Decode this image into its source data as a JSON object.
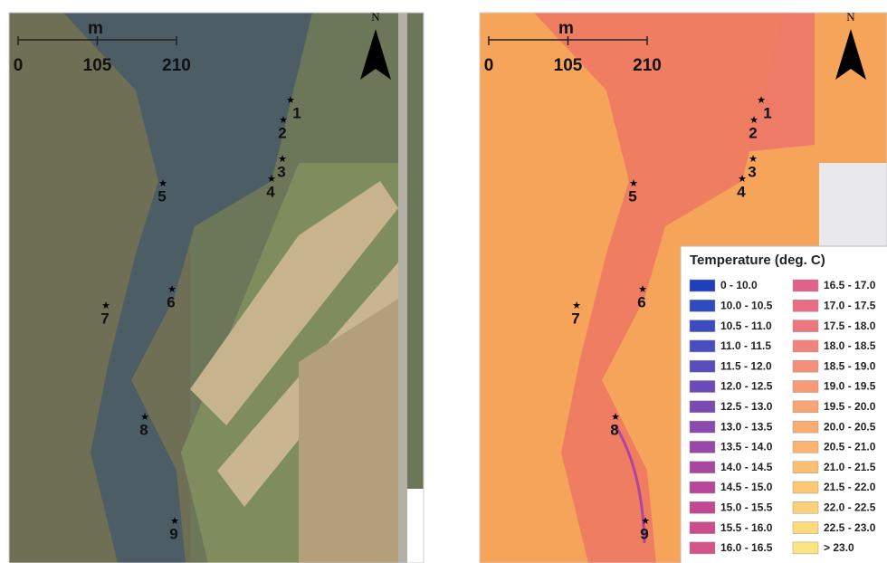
{
  "panels": [
    {
      "scale_bar": {
        "unit": "m",
        "ticks": [
          0,
          105,
          210
        ]
      },
      "north": "N",
      "sites": [
        "1",
        "2",
        "3",
        "4",
        "5",
        "6",
        "7",
        "8",
        "9"
      ]
    },
    {
      "scale_bar": {
        "unit": "m",
        "ticks": [
          0,
          105,
          210
        ]
      },
      "north": "N",
      "sites": [
        "1",
        "2",
        "3",
        "4",
        "5",
        "6",
        "7",
        "8",
        "9"
      ],
      "legend": {
        "title": "Temperature (deg. C)",
        "entries": [
          {
            "label": "0 - 10.0",
            "color": "#1f3fbf"
          },
          {
            "label": "10.0 - 10.5",
            "color": "#2e4cc0"
          },
          {
            "label": "10.5 - 11.0",
            "color": "#3c4cc0"
          },
          {
            "label": "11.0 - 11.5",
            "color": "#4a4dbf"
          },
          {
            "label": "11.5 - 12.0",
            "color": "#5a4cbd"
          },
          {
            "label": "12.0 - 12.5",
            "color": "#6a4bb8"
          },
          {
            "label": "12.5 - 13.0",
            "color": "#7a4ab3"
          },
          {
            "label": "13.0 - 13.5",
            "color": "#8a4aae"
          },
          {
            "label": "13.5 - 14.0",
            "color": "#9a48a8"
          },
          {
            "label": "14.0 - 14.5",
            "color": "#a847a2"
          },
          {
            "label": "14.5 - 15.0",
            "color": "#b6479b"
          },
          {
            "label": "15.0 - 15.5",
            "color": "#c24893"
          },
          {
            "label": "15.5 - 16.0",
            "color": "#cc4d8c"
          },
          {
            "label": "16.0 - 16.5",
            "color": "#d65589"
          },
          {
            "label": "16.5 - 17.0",
            "color": "#e0628a"
          },
          {
            "label": "17.0 - 17.5",
            "color": "#e86c84"
          },
          {
            "label": "17.5 - 18.0",
            "color": "#ee777f"
          },
          {
            "label": "18.0 - 18.5",
            "color": "#f2837c"
          },
          {
            "label": "18.5 - 19.0",
            "color": "#f58f79"
          },
          {
            "label": "19.0 - 19.5",
            "color": "#f79a76"
          },
          {
            "label": "19.5 - 20.0",
            "color": "#f9a474"
          },
          {
            "label": "20.0 - 20.5",
            "color": "#faad72"
          },
          {
            "label": "20.5 - 21.0",
            "color": "#fbb570"
          },
          {
            "label": "21.0 - 21.5",
            "color": "#fcbf70"
          },
          {
            "label": "21.5 - 22.0",
            "color": "#fcc873"
          },
          {
            "label": "22.0 - 22.5",
            "color": "#fdd177"
          },
          {
            "label": "22.5 - 23.0",
            "color": "#fdda7c"
          },
          {
            "label": "> 23.0",
            "color": "#fde483"
          }
        ]
      }
    }
  ]
}
